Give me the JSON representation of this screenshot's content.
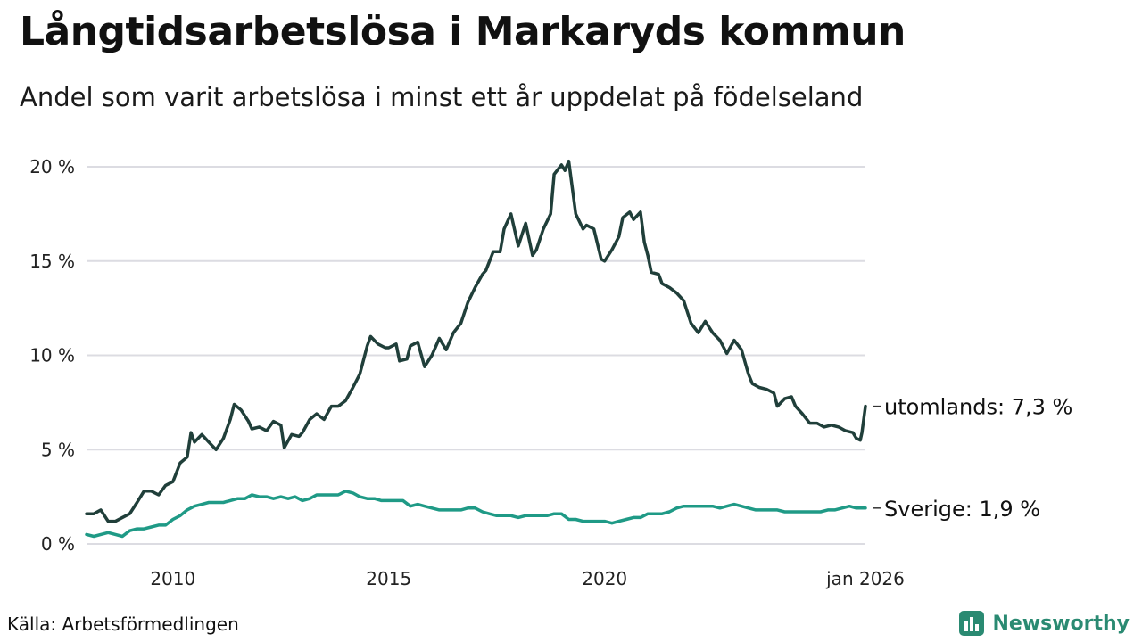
{
  "title": "Långtidsarbetslösa i Markaryds kommun",
  "subtitle": "Andel som varit arbetslösa i minst ett år uppdelat på födelseland",
  "source": "Källa: Arbetsförmedlingen",
  "brand": "Newsworthy",
  "colors": {
    "utomlands": "#203f3a",
    "sverige": "#1f9a86",
    "grid": "#dcdce2",
    "brand": "#2a8a72"
  },
  "chart_data": {
    "type": "line",
    "title": "Långtidsarbetslösa i Markaryds kommun",
    "xlabel": "",
    "ylabel": "",
    "xlim": [
      2008.0,
      2026.04
    ],
    "ylim": [
      0,
      20
    ],
    "x_ticks": [
      {
        "value": 2010,
        "label": "2010"
      },
      {
        "value": 2015,
        "label": "2015"
      },
      {
        "value": 2020,
        "label": "2020"
      },
      {
        "value": 2026.04,
        "label": "jan 2026"
      }
    ],
    "y_ticks": [
      {
        "value": 0,
        "label": "0 %"
      },
      {
        "value": 5,
        "label": "5 %"
      },
      {
        "value": 10,
        "label": "10 %"
      },
      {
        "value": 15,
        "label": "15 %"
      },
      {
        "value": 20,
        "label": "20 %"
      }
    ],
    "grid": true,
    "series": [
      {
        "name": "utomlands",
        "end_label": "utomlands: 7,3 %",
        "color": "#203f3a",
        "points": [
          [
            2008.0,
            1.6
          ],
          [
            2008.17,
            1.6
          ],
          [
            2008.33,
            1.8
          ],
          [
            2008.5,
            1.2
          ],
          [
            2008.67,
            1.2
          ],
          [
            2008.83,
            1.4
          ],
          [
            2009.0,
            1.6
          ],
          [
            2009.17,
            2.2
          ],
          [
            2009.33,
            2.8
          ],
          [
            2009.5,
            2.8
          ],
          [
            2009.67,
            2.6
          ],
          [
            2009.83,
            3.1
          ],
          [
            2010.0,
            3.3
          ],
          [
            2010.17,
            4.3
          ],
          [
            2010.33,
            4.6
          ],
          [
            2010.42,
            5.9
          ],
          [
            2010.5,
            5.4
          ],
          [
            2010.67,
            5.8
          ],
          [
            2010.83,
            5.4
          ],
          [
            2011.0,
            5.0
          ],
          [
            2011.17,
            5.6
          ],
          [
            2011.33,
            6.6
          ],
          [
            2011.42,
            7.4
          ],
          [
            2011.58,
            7.1
          ],
          [
            2011.75,
            6.5
          ],
          [
            2011.83,
            6.1
          ],
          [
            2012.0,
            6.2
          ],
          [
            2012.17,
            6.0
          ],
          [
            2012.33,
            6.5
          ],
          [
            2012.5,
            6.3
          ],
          [
            2012.58,
            5.1
          ],
          [
            2012.75,
            5.8
          ],
          [
            2012.92,
            5.7
          ],
          [
            2013.0,
            5.9
          ],
          [
            2013.17,
            6.6
          ],
          [
            2013.33,
            6.9
          ],
          [
            2013.5,
            6.6
          ],
          [
            2013.67,
            7.3
          ],
          [
            2013.83,
            7.3
          ],
          [
            2014.0,
            7.6
          ],
          [
            2014.17,
            8.3
          ],
          [
            2014.33,
            9.0
          ],
          [
            2014.5,
            10.5
          ],
          [
            2014.58,
            11.0
          ],
          [
            2014.75,
            10.6
          ],
          [
            2014.92,
            10.4
          ],
          [
            2015.0,
            10.4
          ],
          [
            2015.17,
            10.6
          ],
          [
            2015.25,
            9.7
          ],
          [
            2015.42,
            9.8
          ],
          [
            2015.5,
            10.5
          ],
          [
            2015.67,
            10.7
          ],
          [
            2015.83,
            9.4
          ],
          [
            2016.0,
            10.0
          ],
          [
            2016.17,
            10.9
          ],
          [
            2016.33,
            10.3
          ],
          [
            2016.5,
            11.2
          ],
          [
            2016.67,
            11.7
          ],
          [
            2016.83,
            12.8
          ],
          [
            2017.0,
            13.6
          ],
          [
            2017.17,
            14.3
          ],
          [
            2017.25,
            14.5
          ],
          [
            2017.42,
            15.5
          ],
          [
            2017.58,
            15.5
          ],
          [
            2017.67,
            16.7
          ],
          [
            2017.83,
            17.5
          ],
          [
            2018.0,
            15.8
          ],
          [
            2018.17,
            17.0
          ],
          [
            2018.33,
            15.3
          ],
          [
            2018.42,
            15.6
          ],
          [
            2018.58,
            16.7
          ],
          [
            2018.75,
            17.5
          ],
          [
            2018.83,
            19.6
          ],
          [
            2019.0,
            20.1
          ],
          [
            2019.08,
            19.8
          ],
          [
            2019.17,
            20.3
          ],
          [
            2019.33,
            17.5
          ],
          [
            2019.5,
            16.7
          ],
          [
            2019.58,
            16.9
          ],
          [
            2019.75,
            16.7
          ],
          [
            2019.92,
            15.1
          ],
          [
            2020.0,
            15.0
          ],
          [
            2020.17,
            15.6
          ],
          [
            2020.33,
            16.3
          ],
          [
            2020.42,
            17.3
          ],
          [
            2020.58,
            17.6
          ],
          [
            2020.67,
            17.2
          ],
          [
            2020.83,
            17.6
          ],
          [
            2020.92,
            16.0
          ],
          [
            2021.0,
            15.3
          ],
          [
            2021.08,
            14.4
          ],
          [
            2021.25,
            14.3
          ],
          [
            2021.33,
            13.8
          ],
          [
            2021.5,
            13.6
          ],
          [
            2021.67,
            13.3
          ],
          [
            2021.83,
            12.9
          ],
          [
            2022.0,
            11.7
          ],
          [
            2022.17,
            11.2
          ],
          [
            2022.33,
            11.8
          ],
          [
            2022.5,
            11.2
          ],
          [
            2022.67,
            10.8
          ],
          [
            2022.83,
            10.1
          ],
          [
            2023.0,
            10.8
          ],
          [
            2023.17,
            10.3
          ],
          [
            2023.33,
            9.0
          ],
          [
            2023.42,
            8.5
          ],
          [
            2023.58,
            8.3
          ],
          [
            2023.75,
            8.2
          ],
          [
            2023.92,
            8.0
          ],
          [
            2024.0,
            7.3
          ],
          [
            2024.17,
            7.7
          ],
          [
            2024.33,
            7.8
          ],
          [
            2024.42,
            7.3
          ],
          [
            2024.58,
            6.9
          ],
          [
            2024.75,
            6.4
          ],
          [
            2024.92,
            6.4
          ],
          [
            2025.08,
            6.2
          ],
          [
            2025.25,
            6.3
          ],
          [
            2025.42,
            6.2
          ],
          [
            2025.58,
            6.0
          ],
          [
            2025.75,
            5.9
          ],
          [
            2025.83,
            5.6
          ],
          [
            2025.92,
            5.5
          ],
          [
            2025.96,
            5.9
          ],
          [
            2026.04,
            7.3
          ]
        ]
      },
      {
        "name": "Sverige",
        "end_label": "Sverige: 1,9 %",
        "color": "#1f9a86",
        "points": [
          [
            2008.0,
            0.5
          ],
          [
            2008.17,
            0.4
          ],
          [
            2008.33,
            0.5
          ],
          [
            2008.5,
            0.6
          ],
          [
            2008.67,
            0.5
          ],
          [
            2008.83,
            0.4
          ],
          [
            2009.0,
            0.7
          ],
          [
            2009.17,
            0.8
          ],
          [
            2009.33,
            0.8
          ],
          [
            2009.5,
            0.9
          ],
          [
            2009.67,
            1.0
          ],
          [
            2009.83,
            1.0
          ],
          [
            2010.0,
            1.3
          ],
          [
            2010.17,
            1.5
          ],
          [
            2010.33,
            1.8
          ],
          [
            2010.5,
            2.0
          ],
          [
            2010.67,
            2.1
          ],
          [
            2010.83,
            2.2
          ],
          [
            2011.0,
            2.2
          ],
          [
            2011.17,
            2.2
          ],
          [
            2011.33,
            2.3
          ],
          [
            2011.5,
            2.4
          ],
          [
            2011.67,
            2.4
          ],
          [
            2011.83,
            2.6
          ],
          [
            2012.0,
            2.5
          ],
          [
            2012.17,
            2.5
          ],
          [
            2012.33,
            2.4
          ],
          [
            2012.5,
            2.5
          ],
          [
            2012.67,
            2.4
          ],
          [
            2012.83,
            2.5
          ],
          [
            2013.0,
            2.3
          ],
          [
            2013.17,
            2.4
          ],
          [
            2013.33,
            2.6
          ],
          [
            2013.5,
            2.6
          ],
          [
            2013.67,
            2.6
          ],
          [
            2013.83,
            2.6
          ],
          [
            2014.0,
            2.8
          ],
          [
            2014.17,
            2.7
          ],
          [
            2014.33,
            2.5
          ],
          [
            2014.5,
            2.4
          ],
          [
            2014.67,
            2.4
          ],
          [
            2014.83,
            2.3
          ],
          [
            2015.0,
            2.3
          ],
          [
            2015.17,
            2.3
          ],
          [
            2015.33,
            2.3
          ],
          [
            2015.5,
            2.0
          ],
          [
            2015.67,
            2.1
          ],
          [
            2015.83,
            2.0
          ],
          [
            2016.0,
            1.9
          ],
          [
            2016.17,
            1.8
          ],
          [
            2016.33,
            1.8
          ],
          [
            2016.5,
            1.8
          ],
          [
            2016.67,
            1.8
          ],
          [
            2016.83,
            1.9
          ],
          [
            2017.0,
            1.9
          ],
          [
            2017.17,
            1.7
          ],
          [
            2017.33,
            1.6
          ],
          [
            2017.5,
            1.5
          ],
          [
            2017.67,
            1.5
          ],
          [
            2017.83,
            1.5
          ],
          [
            2018.0,
            1.4
          ],
          [
            2018.17,
            1.5
          ],
          [
            2018.33,
            1.5
          ],
          [
            2018.5,
            1.5
          ],
          [
            2018.67,
            1.5
          ],
          [
            2018.83,
            1.6
          ],
          [
            2019.0,
            1.6
          ],
          [
            2019.17,
            1.3
          ],
          [
            2019.33,
            1.3
          ],
          [
            2019.5,
            1.2
          ],
          [
            2019.67,
            1.2
          ],
          [
            2019.83,
            1.2
          ],
          [
            2020.0,
            1.2
          ],
          [
            2020.17,
            1.1
          ],
          [
            2020.33,
            1.2
          ],
          [
            2020.5,
            1.3
          ],
          [
            2020.67,
            1.4
          ],
          [
            2020.83,
            1.4
          ],
          [
            2021.0,
            1.6
          ],
          [
            2021.17,
            1.6
          ],
          [
            2021.33,
            1.6
          ],
          [
            2021.5,
            1.7
          ],
          [
            2021.67,
            1.9
          ],
          [
            2021.83,
            2.0
          ],
          [
            2022.0,
            2.0
          ],
          [
            2022.17,
            2.0
          ],
          [
            2022.33,
            2.0
          ],
          [
            2022.5,
            2.0
          ],
          [
            2022.67,
            1.9
          ],
          [
            2022.83,
            2.0
          ],
          [
            2023.0,
            2.1
          ],
          [
            2023.17,
            2.0
          ],
          [
            2023.33,
            1.9
          ],
          [
            2023.5,
            1.8
          ],
          [
            2023.67,
            1.8
          ],
          [
            2023.83,
            1.8
          ],
          [
            2024.0,
            1.8
          ],
          [
            2024.17,
            1.7
          ],
          [
            2024.33,
            1.7
          ],
          [
            2024.5,
            1.7
          ],
          [
            2024.67,
            1.7
          ],
          [
            2024.83,
            1.7
          ],
          [
            2025.0,
            1.7
          ],
          [
            2025.17,
            1.8
          ],
          [
            2025.33,
            1.8
          ],
          [
            2025.5,
            1.9
          ],
          [
            2025.67,
            2.0
          ],
          [
            2025.83,
            1.9
          ],
          [
            2025.96,
            1.9
          ],
          [
            2026.04,
            1.9
          ]
        ]
      }
    ]
  }
}
